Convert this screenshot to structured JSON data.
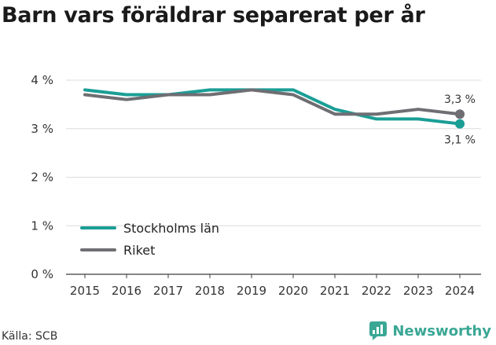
{
  "title": "Barn vars föräldrar separerat per år",
  "source": "Källa: SCB",
  "brand": "Newsworthy",
  "chart_data": {
    "type": "line",
    "x": [
      2015,
      2016,
      2017,
      2018,
      2019,
      2020,
      2021,
      2022,
      2023,
      2024
    ],
    "y_ticks": [
      "0 %",
      "1 %",
      "2 %",
      "3 %",
      "4 %"
    ],
    "ylim": [
      0,
      4
    ],
    "grid": true,
    "legend_position": "bottom-left",
    "series": [
      {
        "name": "Stockholms län",
        "color": "#1a9e96",
        "values": [
          3.8,
          3.7,
          3.7,
          3.8,
          3.8,
          3.8,
          3.4,
          3.2,
          3.2,
          3.1
        ],
        "end_label": "3,1 %"
      },
      {
        "name": "Riket",
        "color": "#6e6e73",
        "values": [
          3.7,
          3.6,
          3.7,
          3.7,
          3.8,
          3.7,
          3.3,
          3.3,
          3.4,
          3.3
        ],
        "end_label": "3,3 %"
      }
    ]
  }
}
